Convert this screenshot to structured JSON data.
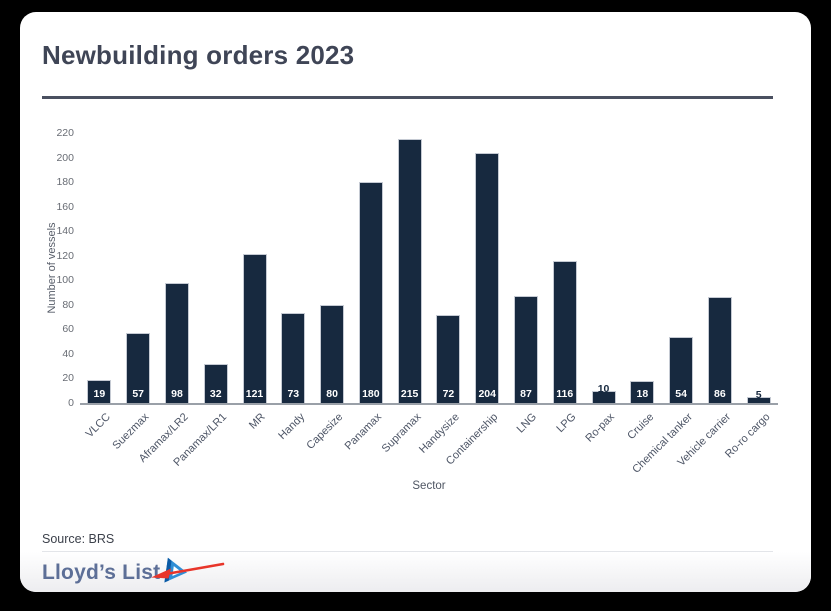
{
  "card": {
    "title": "Newbuilding orders 2023",
    "source": "Source: BRS",
    "brand_name": "Lloyd’s List"
  },
  "chart_data": {
    "type": "bar",
    "title": "Newbuilding orders 2023",
    "xlabel": "Sector",
    "ylabel": "Number of vessels",
    "ylim": [
      0,
      220
    ],
    "ytick_step": 20,
    "grid": false,
    "legend": false,
    "categories": [
      "VLCC",
      "Suezmax",
      "Aframax/LR2",
      "Panamax/LR1",
      "MR",
      "Handy",
      "Capesize",
      "Panamax",
      "Supramax",
      "Handysize",
      "Containership",
      "LNG",
      "LPG",
      "Ro-pax",
      "Cruise",
      "Chemical tanker",
      "Vehicle carrier",
      "Ro-ro cargo"
    ],
    "values": [
      19,
      57,
      98,
      32,
      121,
      73,
      80,
      180,
      215,
      72,
      204,
      87,
      116,
      10,
      18,
      54,
      86,
      5
    ],
    "source": "BRS"
  },
  "colors": {
    "bar": "#17293f",
    "bar_border": "#c5cad3",
    "value_label_inside": "#ffffff",
    "value_label_outside": "#17293f",
    "title_text": "#3f4556",
    "title_rule": "#4a5060",
    "brand_text": "#5d6f97",
    "logo_blue_dark": "#0b5aa5",
    "logo_blue_light": "#2f8ed6",
    "annotation_arrow": "#e8352a"
  }
}
